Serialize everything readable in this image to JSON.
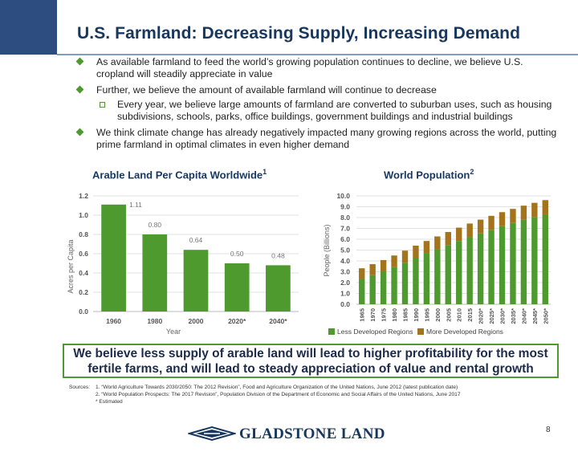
{
  "slide": {
    "title": "U.S. Farmland: Decreasing Supply, Increasing Demand",
    "page_number": "8"
  },
  "bullets": [
    "As available farmland to feed the world’s growing population continues to decline, we believe U.S. cropland will steadily appreciate in value",
    "Further, we believe the amount of available farmland will continue to decrease",
    "We think climate change has already negatively impacted many growing regions across the world, putting prime farmland in optimal climates in even higher demand"
  ],
  "sub_bullets": [
    "Every year, we believe large amounts of farmland are converted to suburban uses, such as housing subdivisions, schools, parks, office buildings, government buildings and industrial buildings"
  ],
  "callout": "We believe less supply of arable land will lead to higher profitability for the most fertile farms, and will lead to steady appreciation of value and rental growth",
  "sources": {
    "label": "Sources:",
    "lines": [
      "1. “World Agriculture Towards 2030/2050: The 2012 Revision”, Food and Agriculture Organization of the United Nations, June 2012 (latest publication date)",
      "2. “World Population Prospects: The 2017 Revision”, Population Division of the Department of Economic and Social Affairs of the United Nations, June 2017",
      "*   Estimated"
    ]
  },
  "logo": {
    "text": "GLADSTONE LAND"
  },
  "colors": {
    "green": "#4e9a2e",
    "navy": "#17375e",
    "brown": "#a4741c",
    "strip": "#2d4c80"
  },
  "chart_data": [
    {
      "type": "bar",
      "title": "Arable Land Per Capita Worldwide",
      "title_sup": "1",
      "categories": [
        "1960",
        "1980",
        "2000",
        "2020*",
        "2040*"
      ],
      "values": [
        1.11,
        0.8,
        0.64,
        0.5,
        0.48
      ],
      "value_labels": [
        "1.11",
        "0.80",
        "0.64",
        "0.50",
        "0.48"
      ],
      "xlabel": "Year",
      "ylabel": "Acres per Capita",
      "ylim": [
        0,
        1.2
      ],
      "yticks": [
        "0.0",
        "0.2",
        "0.4",
        "0.6",
        "0.8",
        "1.0",
        "1.2"
      ],
      "color": "#4e9a2e"
    },
    {
      "type": "bar",
      "stacked": true,
      "title": "World Population",
      "title_sup": "2",
      "categories": [
        "1965",
        "1970",
        "1975",
        "1980",
        "1985",
        "1990",
        "1995",
        "2000",
        "2005",
        "2010",
        "2015",
        "2020*",
        "2025*",
        "2030*",
        "2035*",
        "2040*",
        "2045*",
        "2050*"
      ],
      "series": [
        {
          "name": "Less Developed Regions",
          "color": "#4e9a2e",
          "values": [
            2.33,
            2.69,
            3.04,
            3.42,
            3.83,
            4.26,
            4.67,
            5.07,
            5.46,
            5.84,
            6.19,
            6.54,
            6.87,
            7.2,
            7.5,
            7.79,
            8.05,
            8.3
          ]
        },
        {
          "name": "More Developed Regions",
          "color": "#a4741c",
          "values": [
            0.99,
            1.01,
            1.04,
            1.08,
            1.12,
            1.15,
            1.17,
            1.19,
            1.21,
            1.23,
            1.26,
            1.27,
            1.29,
            1.3,
            1.3,
            1.31,
            1.31,
            1.31
          ]
        }
      ],
      "ylabel": "People (Billions)",
      "ylim": [
        0,
        10
      ],
      "yticks": [
        "0.0",
        "1.0",
        "2.0",
        "3.0",
        "4.0",
        "5.0",
        "6.0",
        "7.0",
        "8.0",
        "9.0",
        "10.0"
      ]
    }
  ]
}
